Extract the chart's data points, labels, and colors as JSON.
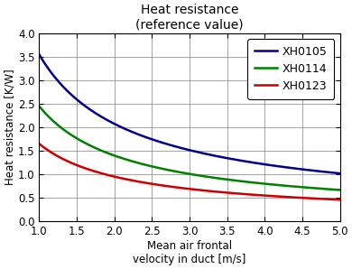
{
  "title": "Heat resistance\n(reference value)",
  "xlabel": "Mean air frontal\nvelocity in duct [m/s]",
  "ylabel": "Heat resistance [K/W]",
  "xlim": [
    1.0,
    5.0
  ],
  "ylim": [
    0,
    4.0
  ],
  "xticks": [
    1.0,
    1.5,
    2.0,
    2.5,
    3.0,
    3.5,
    4.0,
    4.5,
    5.0
  ],
  "yticks": [
    0,
    0.5,
    1.0,
    1.5,
    2.0,
    2.5,
    3.0,
    3.5,
    4.0
  ],
  "series": [
    {
      "label": "XH0105",
      "color": "#00008B",
      "a": 3.55,
      "b": 0.775
    },
    {
      "label": "XH0114",
      "color": "#008000",
      "a": 2.45,
      "b": 0.808
    },
    {
      "label": "XH0123",
      "color": "#CC0000",
      "a": 1.65,
      "b": 0.794
    }
  ],
  "background_color": "#ffffff",
  "grid_color": "#808080",
  "title_fontsize": 10,
  "label_fontsize": 8.5,
  "tick_fontsize": 8.5,
  "legend_fontsize": 9,
  "fig_width": 3.9,
  "fig_height": 2.98,
  "fig_dpi": 100
}
